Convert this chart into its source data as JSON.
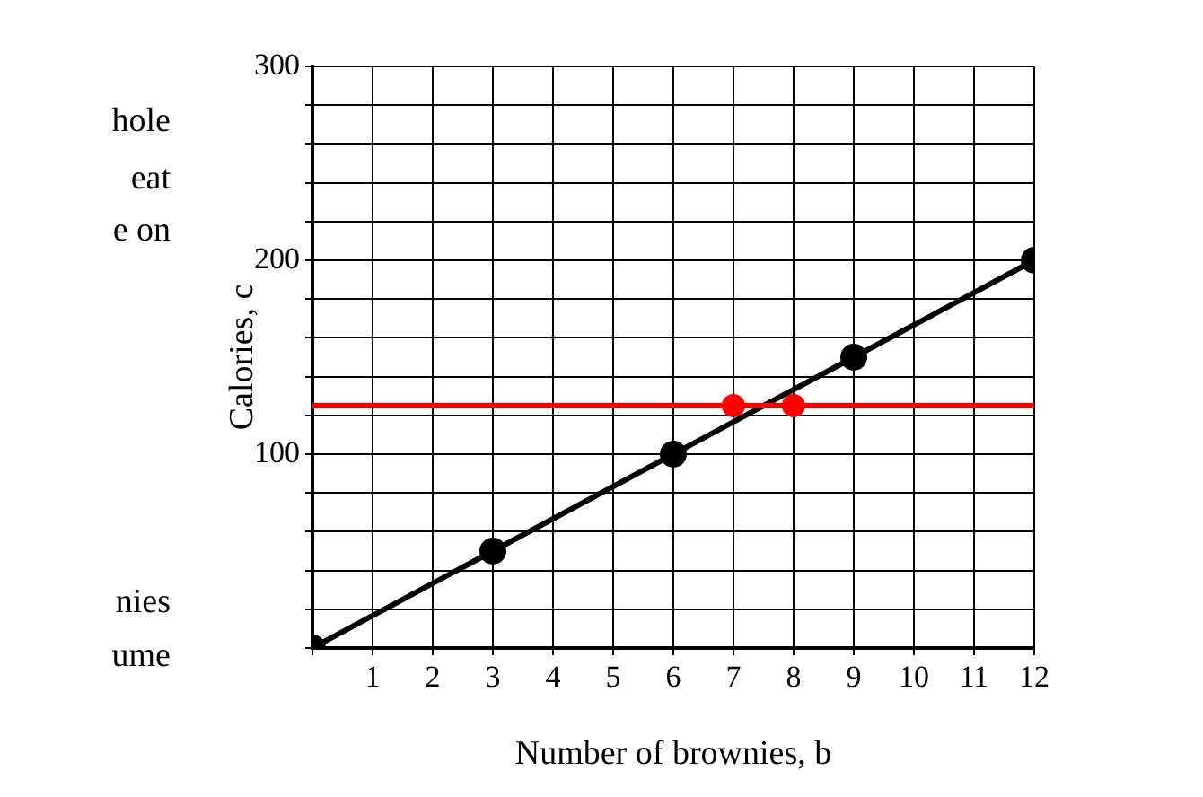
{
  "chart_data": {
    "type": "line",
    "xlabel": "Number of brownies, b",
    "ylabel": "Calories, c",
    "xlim": [
      0,
      12
    ],
    "ylim": [
      0,
      300
    ],
    "xticks": [
      {
        "value": 0,
        "label": null
      },
      1,
      2,
      3,
      4,
      5,
      6,
      7,
      8,
      9,
      10,
      11,
      12
    ],
    "yticks": [
      {
        "value": 0,
        "label": null
      },
      {
        "value": 20,
        "label": null
      },
      {
        "value": 40,
        "label": null
      },
      {
        "value": 60,
        "label": null
      },
      {
        "value": 80,
        "label": null
      },
      100,
      {
        "value": 120,
        "label": null
      },
      {
        "value": 140,
        "label": null
      },
      {
        "value": 160,
        "label": null
      },
      {
        "value": 180,
        "label": null
      },
      200,
      {
        "value": 220,
        "label": null
      },
      {
        "value": 240,
        "label": null
      },
      {
        "value": 260,
        "label": null
      },
      {
        "value": 280,
        "label": null
      },
      300
    ],
    "grid": true,
    "legend": false,
    "marker": "circle",
    "series": [
      {
        "type": "line",
        "color": "#000000",
        "x": [
          0,
          3,
          6,
          9,
          12
        ],
        "values": [
          0,
          50,
          100,
          150,
          200
        ]
      },
      {
        "type": "scatter",
        "color": "#ff0000",
        "x": [
          7,
          8
        ],
        "values": [
          125,
          125
        ]
      }
    ],
    "ref_lines": [
      {
        "axis": "y",
        "value": 125,
        "color": "#ff0000"
      }
    ],
    "annotations": [
      "hole",
      "eat",
      "e on",
      "nies",
      "ume"
    ]
  }
}
